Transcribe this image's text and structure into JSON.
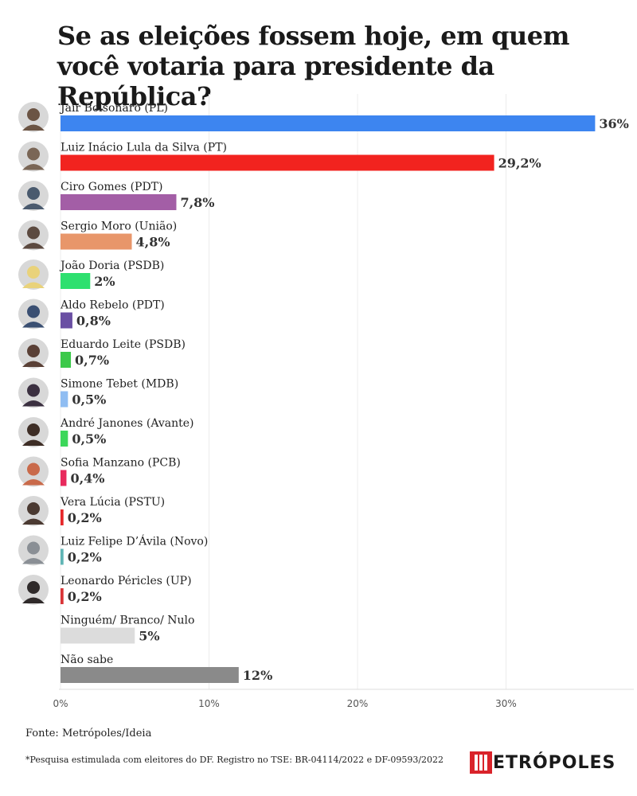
{
  "title": "Se as eleições fossem hoje, em quem você votaria para presidente da República?",
  "source": "Fonte: Metrópoles/Ideia",
  "note": "*Pesquisa estimulada com eleitores do DF. Registro no TSE: BR-04114/2022 e DF-09593/2022",
  "brand": {
    "text": "ETRÓPOLES",
    "mark": "M",
    "mark_color": "#d9232a"
  },
  "chart_data": {
    "type": "bar",
    "orientation": "horizontal",
    "xlim": [
      0,
      38
    ],
    "ticks": [
      0,
      10,
      20,
      30
    ],
    "tick_labels": [
      "0%",
      "10%",
      "20%",
      "30%"
    ],
    "grid": true,
    "categories": [
      "Jair Bolsonaro (PL)",
      "Luiz Inácio Lula da Silva (PT)",
      "Ciro Gomes (PDT)",
      "Sergio Moro (União)",
      "João Doria (PSDB)",
      "Aldo Rebelo (PDT)",
      "Eduardo Leite (PSDB)",
      "Simone Tebet (MDB)",
      "André Janones (Avante)",
      "Sofia Manzano (PCB)",
      "Vera Lúcia (PSTU)",
      "Luiz Felipe D’Ávila (Novo)",
      "Leonardo Péricles (UP)",
      "Ninguém/ Branco/ Nulo",
      "Não sabe"
    ],
    "values": [
      36,
      29.2,
      7.8,
      4.8,
      2,
      0.8,
      0.7,
      0.5,
      0.5,
      0.4,
      0.2,
      0.2,
      0.2,
      5,
      12
    ],
    "value_labels": [
      "36%",
      "29,2%",
      "7,8%",
      "4,8%",
      "2%",
      "0,8%",
      "0,7%",
      "0,5%",
      "0,5%",
      "0,4%",
      "0,2%",
      "0,2%",
      "0,2%",
      "5%",
      "12%"
    ],
    "colors": [
      "#3d85f0",
      "#f2231f",
      "#a35ea6",
      "#e8966a",
      "#2ee06f",
      "#6a4fa3",
      "#3cc94a",
      "#8fbdf2",
      "#3cd75a",
      "#e82a5c",
      "#e6282a",
      "#5fb5b5",
      "#d93437",
      "#dcdcdc",
      "#8a8a8a"
    ],
    "has_avatar": [
      true,
      true,
      true,
      true,
      true,
      true,
      true,
      true,
      true,
      true,
      true,
      true,
      true,
      false,
      false
    ],
    "avatar_colors": [
      "#6b5444",
      "#7a6656",
      "#4a5a6e",
      "#5c4a40",
      "#e9d27a",
      "#3a4f72",
      "#5a4036",
      "#3b3040",
      "#3e2e26",
      "#c96a4a",
      "#4b3a32",
      "#8a8f95",
      "#2f2a2a"
    ]
  }
}
